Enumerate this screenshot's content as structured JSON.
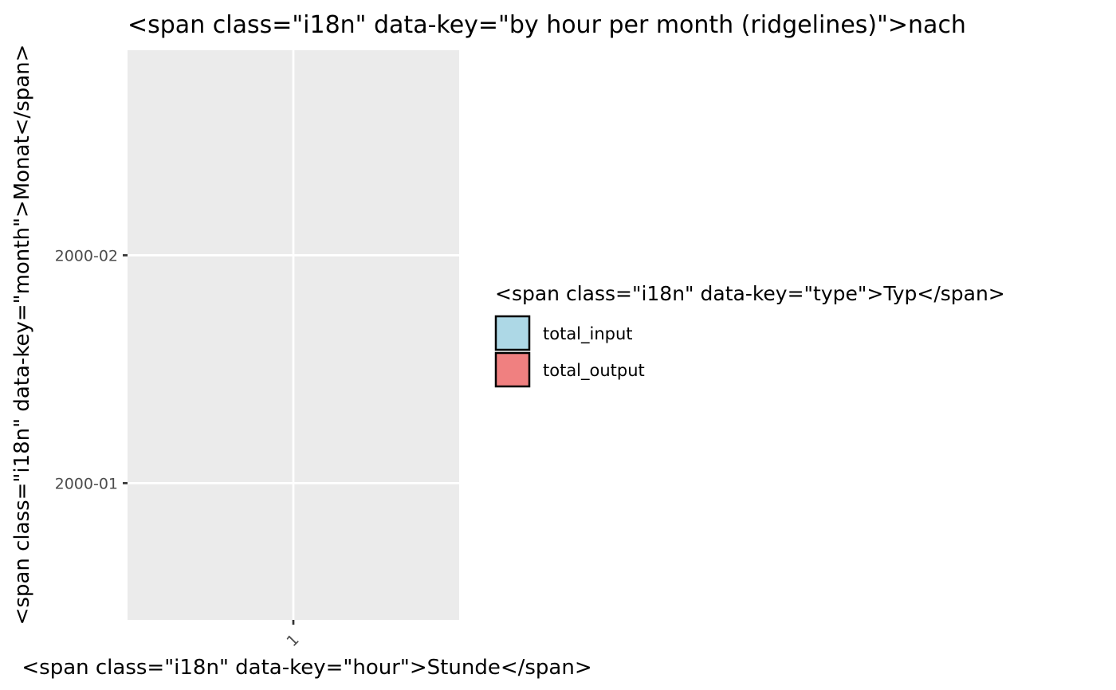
{
  "chart_data": {
    "type": "area",
    "title": "<span class=\"i18n\" data-key=\"by hour per month (ridgelines)\">nach",
    "xlabel": "<span class=\"i18n\" data-key=\"hour\">Stunde</span>",
    "ylabel": "<span class=\"i18n\" data-key=\"month\">Monat</span>",
    "x_ticks": [
      "1"
    ],
    "y_ticks": [
      "2000-01",
      "2000-02"
    ],
    "ylim": [
      0.4,
      2.9
    ],
    "series": [
      {
        "name": "total_input",
        "x": [],
        "values": [],
        "color": "#add8e6"
      },
      {
        "name": "total_output",
        "x": [],
        "values": [],
        "color": "#f08080"
      }
    ],
    "legend": {
      "title": "<span class=\"i18n\" data-key=\"type\">Typ</span>",
      "placement": "right"
    },
    "grid": true,
    "panel_background": "#ebebeb",
    "grid_color": "#ffffff"
  }
}
